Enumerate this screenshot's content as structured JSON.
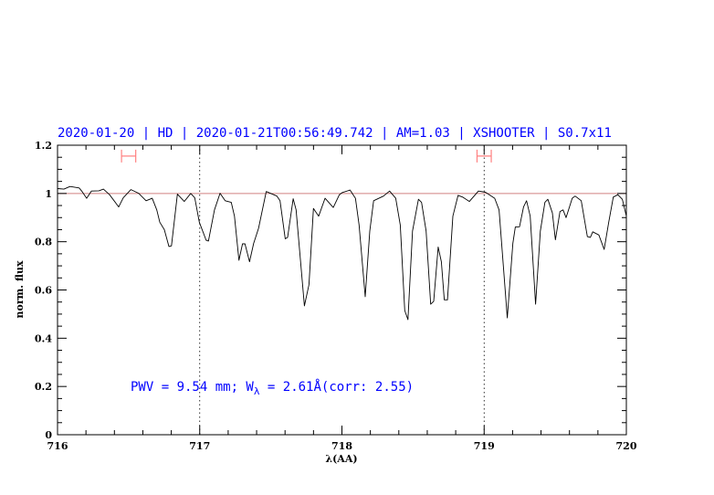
{
  "chart_data": {
    "type": "line",
    "title": "2020-01-20 | HD | 2020-01-21T00:56:49.742 | AM=1.03 | XSHOOTER | S0.7x11",
    "xlabel": "λ(AA)",
    "ylabel": "norm. flux",
    "xlim": [
      716,
      720
    ],
    "ylim": [
      0,
      1.2
    ],
    "x_ticks": [
      716,
      717,
      718,
      719,
      720
    ],
    "x_tick_labels": [
      "716",
      "717",
      "718",
      "719",
      "720"
    ],
    "y_ticks": [
      0,
      0.2,
      0.4,
      0.6,
      0.8,
      1,
      1.2
    ],
    "y_tick_labels": [
      "0",
      "0.2",
      "0.4",
      "0.6",
      "0.8",
      "1",
      "1.2"
    ],
    "x_minor_step": 0.2,
    "y_minor_step": 0.05,
    "grid": false,
    "reference_line": {
      "y": 1,
      "color": "#d08080"
    },
    "vertical_dotted_lines": [
      717,
      719
    ],
    "error_bars": [
      {
        "x_from": 716.45,
        "x_to": 716.55,
        "y": 1.155,
        "color": "#ff8080"
      },
      {
        "x_from": 718.95,
        "x_to": 719.05,
        "y": 1.155,
        "color": "#ff8080"
      }
    ],
    "annotation": {
      "prefix": "PWV = 9.54 mm; W",
      "subscript": "λ",
      "suffix": " = 2.61Å(corr: 2.55)",
      "color": "#0000ff"
    },
    "series": [
      {
        "color": "#000000",
        "x": [
          716.002,
          716.045,
          716.088,
          716.152,
          716.173,
          716.205,
          716.238,
          716.291,
          716.323,
          716.366,
          716.43,
          716.462,
          716.516,
          716.57,
          716.623,
          716.666,
          716.698,
          716.719,
          716.751,
          716.783,
          716.801,
          716.843,
          716.891,
          716.937,
          716.965,
          716.997,
          717.045,
          717.061,
          717.104,
          717.143,
          717.179,
          717.222,
          717.244,
          717.276,
          717.301,
          717.318,
          717.35,
          717.379,
          717.414,
          717.468,
          717.543,
          717.565,
          717.601,
          717.618,
          717.657,
          717.678,
          717.736,
          717.768,
          717.8,
          717.836,
          717.881,
          717.939,
          717.982,
          718.003,
          718.057,
          718.095,
          718.121,
          718.164,
          718.196,
          718.223,
          718.292,
          718.335,
          718.378,
          718.41,
          718.442,
          718.464,
          718.496,
          718.538,
          718.56,
          718.592,
          718.624,
          718.645,
          718.677,
          718.699,
          718.72,
          718.742,
          718.78,
          718.817,
          718.849,
          718.896,
          718.96,
          719.009,
          719.074,
          719.105,
          719.138,
          719.163,
          719.202,
          719.219,
          719.249,
          719.277,
          719.298,
          719.324,
          719.362,
          719.395,
          719.427,
          719.448,
          719.48,
          719.501,
          719.533,
          719.555,
          719.576,
          719.619,
          719.64,
          719.683,
          719.726,
          719.747,
          719.764,
          719.807,
          719.844,
          719.876,
          719.908,
          719.94,
          719.972,
          720.0
        ],
        "y": [
          1.02,
          1.018,
          1.029,
          1.023,
          1.008,
          0.98,
          1.01,
          1.011,
          1.018,
          0.995,
          0.944,
          0.982,
          1.016,
          1.001,
          0.97,
          0.98,
          0.932,
          0.881,
          0.85,
          0.78,
          0.783,
          0.997,
          0.967,
          1.0,
          0.982,
          0.881,
          0.806,
          0.803,
          0.932,
          1.001,
          0.97,
          0.963,
          0.906,
          0.723,
          0.791,
          0.791,
          0.717,
          0.793,
          0.856,
          1.008,
          0.989,
          0.97,
          0.812,
          0.818,
          0.978,
          0.932,
          0.534,
          0.622,
          0.938,
          0.906,
          0.98,
          0.942,
          0.995,
          1.004,
          1.014,
          0.98,
          0.869,
          0.572,
          0.844,
          0.97,
          0.989,
          1.01,
          0.98,
          0.869,
          0.515,
          0.477,
          0.844,
          0.976,
          0.963,
          0.844,
          0.541,
          0.553,
          0.778,
          0.717,
          0.559,
          0.559,
          0.906,
          0.992,
          0.985,
          0.967,
          1.01,
          1.005,
          0.98,
          0.932,
          0.679,
          0.484,
          0.793,
          0.861,
          0.862,
          0.944,
          0.97,
          0.906,
          0.541,
          0.844,
          0.963,
          0.976,
          0.919,
          0.808,
          0.925,
          0.932,
          0.9,
          0.98,
          0.989,
          0.97,
          0.821,
          0.818,
          0.841,
          0.828,
          0.768,
          0.881,
          0.985,
          0.995,
          0.976,
          0.906
        ]
      }
    ]
  }
}
